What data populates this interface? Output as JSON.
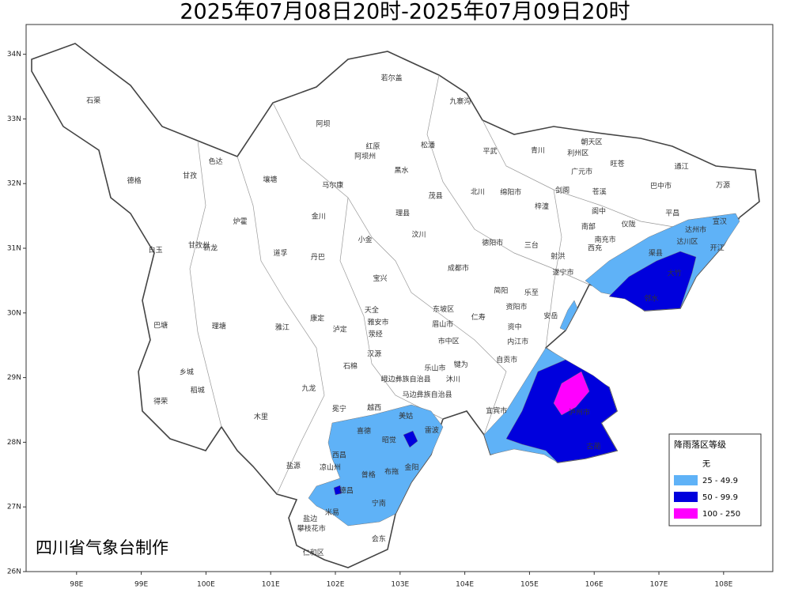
{
  "chart_data": {
    "type": "map",
    "title": "2025年07月08日20时-2025年07月09日20时",
    "credit": "四川省气象台制作",
    "xlim": [
      97.22,
      108.76
    ],
    "ylim": [
      26,
      34.46
    ],
    "xticks": [
      {
        "value": 98,
        "label": "98E"
      },
      {
        "value": 99,
        "label": "99E"
      },
      {
        "value": 100,
        "label": "100E"
      },
      {
        "value": 101,
        "label": "101E"
      },
      {
        "value": 102,
        "label": "102E"
      },
      {
        "value": 103,
        "label": "103E"
      },
      {
        "value": 104,
        "label": "104E"
      },
      {
        "value": 105,
        "label": "105E"
      },
      {
        "value": 106,
        "label": "106E"
      },
      {
        "value": 107,
        "label": "107E"
      },
      {
        "value": 108,
        "label": "108E"
      }
    ],
    "yticks": [
      {
        "value": 26,
        "label": "26N"
      },
      {
        "value": 27,
        "label": "27N"
      },
      {
        "value": 28,
        "label": "28N"
      },
      {
        "value": 29,
        "label": "29N"
      },
      {
        "value": 30,
        "label": "30N"
      },
      {
        "value": 31,
        "label": "31N"
      },
      {
        "value": 32,
        "label": "32N"
      },
      {
        "value": 33,
        "label": "33N"
      },
      {
        "value": 34,
        "label": "34N"
      }
    ],
    "legend": {
      "title": "降雨落区等级",
      "items": [
        {
          "label": "无",
          "color": "#ffffff"
        },
        {
          "label": "25 - 49.9",
          "color": "#5fb2f7"
        },
        {
          "label": "50 - 99.9",
          "color": "#0000dd"
        },
        {
          "label": "100 - 250",
          "color": "#ff00ff"
        }
      ]
    },
    "places": [
      {
        "name": "石渠",
        "lon": 98.26,
        "lat": 33.28
      },
      {
        "name": "阿坝",
        "lon": 101.81,
        "lat": 32.92
      },
      {
        "name": "若尔盖",
        "lon": 102.87,
        "lat": 33.63
      },
      {
        "name": "九寨沟",
        "lon": 103.93,
        "lat": 33.27
      },
      {
        "name": "红原",
        "lon": 102.58,
        "lat": 32.57
      },
      {
        "name": "阿坝州",
        "lon": 102.46,
        "lat": 32.42
      },
      {
        "name": "松潘",
        "lon": 103.43,
        "lat": 32.59
      },
      {
        "name": "平武",
        "lon": 104.39,
        "lat": 32.5
      },
      {
        "name": "青川",
        "lon": 105.13,
        "lat": 32.51
      },
      {
        "name": "朝天区",
        "lon": 105.96,
        "lat": 32.64
      },
      {
        "name": "利州区",
        "lon": 105.75,
        "lat": 32.47
      },
      {
        "name": "旺苍",
        "lon": 106.36,
        "lat": 32.3
      },
      {
        "name": "通江",
        "lon": 107.35,
        "lat": 32.26
      },
      {
        "name": "色达",
        "lon": 100.15,
        "lat": 32.34
      },
      {
        "name": "甘孜",
        "lon": 99.75,
        "lat": 32.12
      },
      {
        "name": "德格",
        "lon": 98.89,
        "lat": 32.04
      },
      {
        "name": "壤塘",
        "lon": 100.99,
        "lat": 32.06
      },
      {
        "name": "马尔康",
        "lon": 101.96,
        "lat": 31.97
      },
      {
        "name": "黑水",
        "lon": 103.02,
        "lat": 32.2
      },
      {
        "name": "北川",
        "lon": 104.2,
        "lat": 31.87
      },
      {
        "name": "绵阳市",
        "lon": 104.71,
        "lat": 31.86
      },
      {
        "name": "剑阁",
        "lon": 105.51,
        "lat": 31.89
      },
      {
        "name": "苍溪",
        "lon": 106.08,
        "lat": 31.87
      },
      {
        "name": "广元市",
        "lon": 105.81,
        "lat": 32.18
      },
      {
        "name": "巴中市",
        "lon": 107.03,
        "lat": 31.96
      },
      {
        "name": "万源",
        "lon": 107.99,
        "lat": 31.97
      },
      {
        "name": "炉霍",
        "lon": 100.53,
        "lat": 31.41
      },
      {
        "name": "金川",
        "lon": 101.74,
        "lat": 31.49
      },
      {
        "name": "理县",
        "lon": 103.04,
        "lat": 31.54
      },
      {
        "name": "茂县",
        "lon": 103.55,
        "lat": 31.81
      },
      {
        "name": "梓潼",
        "lon": 105.19,
        "lat": 31.64
      },
      {
        "name": "阆中",
        "lon": 106.07,
        "lat": 31.57
      },
      {
        "name": "仪陇",
        "lon": 106.53,
        "lat": 31.37
      },
      {
        "name": "平昌",
        "lon": 107.21,
        "lat": 31.54
      },
      {
        "name": "宣汉",
        "lon": 107.94,
        "lat": 31.41
      },
      {
        "name": "白玉",
        "lon": 99.22,
        "lat": 30.97
      },
      {
        "name": "甘孜州",
        "lon": 99.89,
        "lat": 31.04
      },
      {
        "name": "新龙",
        "lon": 100.07,
        "lat": 31.0
      },
      {
        "name": "道孚",
        "lon": 101.15,
        "lat": 30.92
      },
      {
        "name": "丹巴",
        "lon": 101.73,
        "lat": 30.86
      },
      {
        "name": "小金",
        "lon": 102.46,
        "lat": 31.13
      },
      {
        "name": "汶川",
        "lon": 103.29,
        "lat": 31.21
      },
      {
        "name": "德阳市",
        "lon": 104.43,
        "lat": 31.08
      },
      {
        "name": "三台",
        "lon": 105.03,
        "lat": 31.04
      },
      {
        "name": "射洪",
        "lon": 105.44,
        "lat": 30.87
      },
      {
        "name": "南部",
        "lon": 105.91,
        "lat": 31.33
      },
      {
        "name": "西充",
        "lon": 106.01,
        "lat": 31.0
      },
      {
        "name": "南充市",
        "lon": 106.17,
        "lat": 31.13
      },
      {
        "name": "渠县",
        "lon": 106.95,
        "lat": 30.92
      },
      {
        "name": "达州市",
        "lon": 107.57,
        "lat": 31.28
      },
      {
        "name": "达川区",
        "lon": 107.44,
        "lat": 31.1
      },
      {
        "name": "开江",
        "lon": 107.9,
        "lat": 31.0
      },
      {
        "name": "宝兴",
        "lon": 102.69,
        "lat": 30.53
      },
      {
        "name": "成都市",
        "lon": 103.9,
        "lat": 30.69
      },
      {
        "name": "遂宁市",
        "lon": 105.52,
        "lat": 30.62
      },
      {
        "name": "大竹",
        "lon": 107.24,
        "lat": 30.61
      },
      {
        "name": "邻水",
        "lon": 106.88,
        "lat": 30.22
      },
      {
        "name": "简阳",
        "lon": 104.56,
        "lat": 30.34
      },
      {
        "name": "乐至",
        "lon": 105.03,
        "lat": 30.31
      },
      {
        "name": "资阳市",
        "lon": 104.8,
        "lat": 30.09
      },
      {
        "name": "安岳",
        "lon": 105.33,
        "lat": 29.95
      },
      {
        "name": "天全",
        "lon": 102.56,
        "lat": 30.04
      },
      {
        "name": "雅安市",
        "lon": 102.66,
        "lat": 29.85
      },
      {
        "name": "仁寿",
        "lon": 104.21,
        "lat": 29.93
      },
      {
        "name": "眉山市",
        "lon": 103.66,
        "lat": 29.82
      },
      {
        "name": "东坡区",
        "lon": 103.67,
        "lat": 30.05
      },
      {
        "name": "巴塘",
        "lon": 99.3,
        "lat": 29.8
      },
      {
        "name": "理塘",
        "lon": 100.2,
        "lat": 29.79
      },
      {
        "name": "雅江",
        "lon": 101.18,
        "lat": 29.77
      },
      {
        "name": "康定",
        "lon": 101.72,
        "lat": 29.91
      },
      {
        "name": "泸定",
        "lon": 102.07,
        "lat": 29.74
      },
      {
        "name": "荥经",
        "lon": 102.62,
        "lat": 29.67
      },
      {
        "name": "市中区",
        "lon": 103.75,
        "lat": 29.56
      },
      {
        "name": "资中",
        "lon": 104.77,
        "lat": 29.78
      },
      {
        "name": "内江市",
        "lon": 104.82,
        "lat": 29.55
      },
      {
        "name": "汉源",
        "lon": 102.6,
        "lat": 29.36
      },
      {
        "name": "乐山市",
        "lon": 103.54,
        "lat": 29.14
      },
      {
        "name": "犍为",
        "lon": 103.94,
        "lat": 29.2
      },
      {
        "name": "自贡市",
        "lon": 104.65,
        "lat": 29.27
      },
      {
        "name": "乡城",
        "lon": 99.7,
        "lat": 29.08
      },
      {
        "name": "稻城",
        "lon": 99.87,
        "lat": 28.8
      },
      {
        "name": "石棉",
        "lon": 102.23,
        "lat": 29.17
      },
      {
        "name": "九龙",
        "lon": 101.59,
        "lat": 28.83
      },
      {
        "name": "峨边彝族自治县",
        "lon": 103.09,
        "lat": 28.97
      },
      {
        "name": "沐川",
        "lon": 103.82,
        "lat": 28.97
      },
      {
        "name": "马边彝族自治县",
        "lon": 103.42,
        "lat": 28.73
      },
      {
        "name": "宜宾市",
        "lon": 104.49,
        "lat": 28.48
      },
      {
        "name": "泸州市",
        "lon": 105.77,
        "lat": 28.46
      },
      {
        "name": "古蔺",
        "lon": 105.99,
        "lat": 27.93
      },
      {
        "name": "得荣",
        "lon": 99.3,
        "lat": 28.63
      },
      {
        "name": "木里",
        "lon": 100.85,
        "lat": 28.39
      },
      {
        "name": "冕宁",
        "lon": 102.06,
        "lat": 28.51
      },
      {
        "name": "越西",
        "lon": 102.6,
        "lat": 28.53
      },
      {
        "name": "美姑",
        "lon": 103.09,
        "lat": 28.4
      },
      {
        "name": "雷波",
        "lon": 103.49,
        "lat": 28.18
      },
      {
        "name": "喜德",
        "lon": 102.44,
        "lat": 28.17
      },
      {
        "name": "昭觉",
        "lon": 102.83,
        "lat": 28.03
      },
      {
        "name": "西昌",
        "lon": 102.06,
        "lat": 27.8
      },
      {
        "name": "凉山州",
        "lon": 101.92,
        "lat": 27.61
      },
      {
        "name": "盐源",
        "lon": 101.35,
        "lat": 27.63
      },
      {
        "name": "布拖",
        "lon": 102.87,
        "lat": 27.54
      },
      {
        "name": "金阳",
        "lon": 103.18,
        "lat": 27.61
      },
      {
        "name": "普格",
        "lon": 102.51,
        "lat": 27.49
      },
      {
        "name": "德昌",
        "lon": 102.17,
        "lat": 27.25
      },
      {
        "name": "宁南",
        "lon": 102.67,
        "lat": 27.05
      },
      {
        "name": "米易",
        "lon": 101.95,
        "lat": 26.91
      },
      {
        "name": "盐边",
        "lon": 101.61,
        "lat": 26.81
      },
      {
        "name": "攀枝花市",
        "lon": 101.63,
        "lat": 26.66
      },
      {
        "name": "仁和区",
        "lon": 101.66,
        "lat": 26.29
      },
      {
        "name": "会东",
        "lon": 102.67,
        "lat": 26.5
      }
    ]
  }
}
